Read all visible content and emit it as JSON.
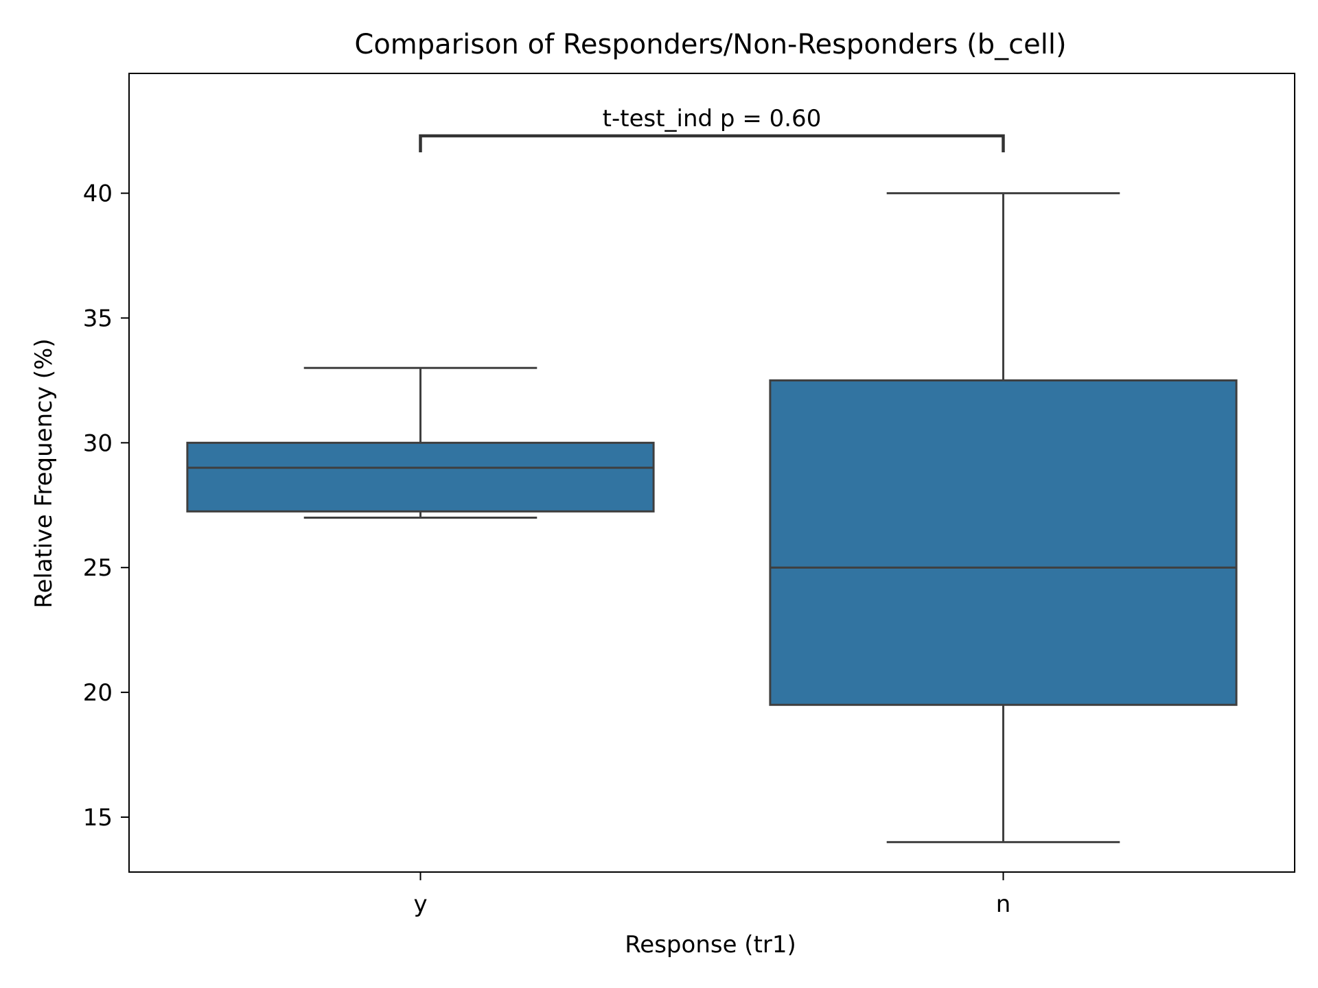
{
  "chart_data": {
    "type": "box",
    "title": "Comparison of Responders/Non-Responders (b_cell)",
    "xlabel": "Response (tr1)",
    "ylabel": "Relative Frequency (%)",
    "categories": [
      "y",
      "n"
    ],
    "ylim": [
      12.8,
      44.8
    ],
    "yticks": [
      15,
      20,
      25,
      30,
      35,
      40
    ],
    "grid": false,
    "legend": "none",
    "box_color": "#3274a1",
    "line_color": "#3f3f3f",
    "boxes": [
      {
        "category": "y",
        "whisker_low": 27.0,
        "q1": 27.25,
        "median": 29.0,
        "q3": 30.0,
        "whisker_high": 33.0
      },
      {
        "category": "n",
        "whisker_low": 14.0,
        "q1": 19.5,
        "median": 25.0,
        "q3": 32.5,
        "whisker_high": 40.0
      }
    ],
    "annotation": {
      "text": "t-test_ind p = 0.60",
      "between": [
        "y",
        "n"
      ],
      "y_value": 42.3
    }
  }
}
